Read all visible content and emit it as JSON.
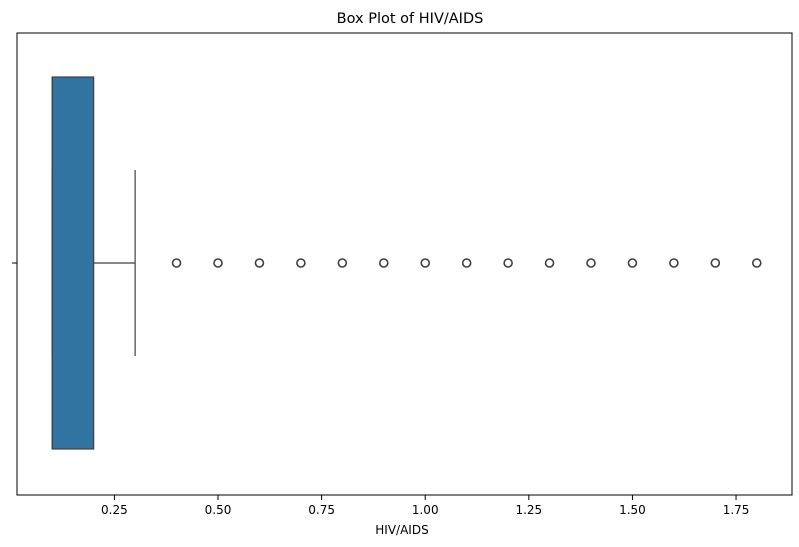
{
  "chart_data": {
    "type": "box",
    "orientation": "horizontal",
    "title": "Box Plot of HIV/AIDS",
    "xlabel": "HIV/AIDS",
    "ylabel": "",
    "xlim": [
      0.015,
      1.885
    ],
    "x_ticks": [
      {
        "value": 0.25,
        "label": "0.25"
      },
      {
        "value": 0.5,
        "label": "0.50"
      },
      {
        "value": 0.75,
        "label": "0.75"
      },
      {
        "value": 1.0,
        "label": "1.00"
      },
      {
        "value": 1.25,
        "label": "1.25"
      },
      {
        "value": 1.5,
        "label": "1.50"
      },
      {
        "value": 1.75,
        "label": "1.75"
      }
    ],
    "box": {
      "whisker_low": 0.1,
      "q1": 0.1,
      "median": 0.1,
      "q3": 0.2,
      "whisker_high": 0.3
    },
    "outliers": [
      0.4,
      0.5,
      0.6,
      0.7,
      0.8,
      0.9,
      1.0,
      1.1,
      1.2,
      1.3,
      1.4,
      1.5,
      1.6,
      1.7,
      1.8
    ],
    "box_color": "#3274a1",
    "line_color": "#3f3f3f",
    "grid": false,
    "legend": "none"
  }
}
